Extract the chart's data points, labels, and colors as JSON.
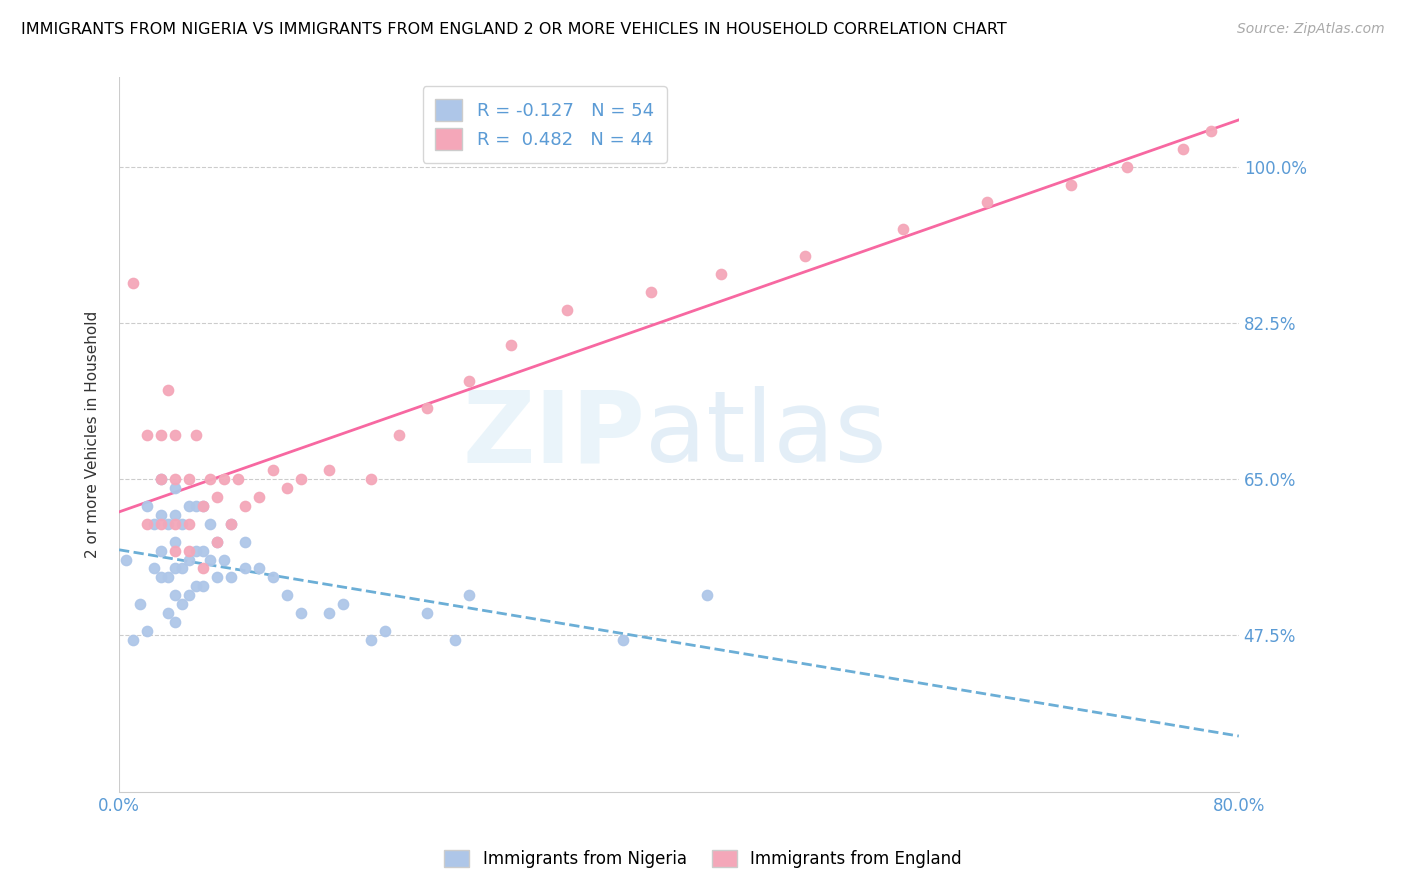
{
  "title": "IMMIGRANTS FROM NIGERIA VS IMMIGRANTS FROM ENGLAND 2 OR MORE VEHICLES IN HOUSEHOLD CORRELATION CHART",
  "source": "Source: ZipAtlas.com",
  "ylabel": "2 or more Vehicles in Household",
  "xlim": [
    0.0,
    0.8
  ],
  "ylim": [
    0.3,
    1.1
  ],
  "yticks": [
    0.475,
    0.65,
    0.825,
    1.0
  ],
  "ytick_labels": [
    "47.5%",
    "65.0%",
    "82.5%",
    "100.0%"
  ],
  "xticks": [
    0.0,
    0.8
  ],
  "xtick_labels": [
    "0.0%",
    "80.0%"
  ],
  "nigeria_R": -0.127,
  "nigeria_N": 54,
  "england_R": 0.482,
  "england_N": 44,
  "legend_labels": [
    "Immigrants from Nigeria",
    "Immigrants from England"
  ],
  "nigeria_color": "#aec6e8",
  "england_color": "#f4a7b9",
  "nigeria_line_color": "#6baed6",
  "england_line_color": "#f768a1",
  "nigeria_scatter_x": [
    0.005,
    0.01,
    0.015,
    0.02,
    0.02,
    0.025,
    0.025,
    0.03,
    0.03,
    0.03,
    0.03,
    0.035,
    0.035,
    0.035,
    0.04,
    0.04,
    0.04,
    0.04,
    0.04,
    0.04,
    0.045,
    0.045,
    0.045,
    0.05,
    0.05,
    0.05,
    0.055,
    0.055,
    0.055,
    0.06,
    0.06,
    0.06,
    0.065,
    0.065,
    0.07,
    0.07,
    0.075,
    0.08,
    0.08,
    0.09,
    0.09,
    0.1,
    0.11,
    0.12,
    0.13,
    0.15,
    0.16,
    0.18,
    0.19,
    0.22,
    0.24,
    0.25,
    0.36,
    0.42
  ],
  "nigeria_scatter_y": [
    0.56,
    0.47,
    0.51,
    0.48,
    0.62,
    0.55,
    0.6,
    0.54,
    0.57,
    0.61,
    0.65,
    0.5,
    0.54,
    0.6,
    0.49,
    0.52,
    0.55,
    0.58,
    0.61,
    0.64,
    0.51,
    0.55,
    0.6,
    0.52,
    0.56,
    0.62,
    0.53,
    0.57,
    0.62,
    0.53,
    0.57,
    0.62,
    0.56,
    0.6,
    0.54,
    0.58,
    0.56,
    0.54,
    0.6,
    0.55,
    0.58,
    0.55,
    0.54,
    0.52,
    0.5,
    0.5,
    0.51,
    0.47,
    0.48,
    0.5,
    0.47,
    0.52,
    0.47,
    0.52
  ],
  "england_scatter_x": [
    0.01,
    0.02,
    0.02,
    0.03,
    0.03,
    0.03,
    0.035,
    0.04,
    0.04,
    0.04,
    0.04,
    0.05,
    0.05,
    0.05,
    0.055,
    0.06,
    0.06,
    0.065,
    0.07,
    0.07,
    0.075,
    0.08,
    0.085,
    0.09,
    0.1,
    0.11,
    0.12,
    0.13,
    0.15,
    0.18,
    0.2,
    0.22,
    0.25,
    0.28,
    0.32,
    0.38,
    0.43,
    0.49,
    0.56,
    0.62,
    0.68,
    0.72,
    0.76,
    0.78
  ],
  "england_scatter_y": [
    0.87,
    0.6,
    0.7,
    0.6,
    0.65,
    0.7,
    0.75,
    0.57,
    0.6,
    0.65,
    0.7,
    0.57,
    0.6,
    0.65,
    0.7,
    0.55,
    0.62,
    0.65,
    0.58,
    0.63,
    0.65,
    0.6,
    0.65,
    0.62,
    0.63,
    0.66,
    0.64,
    0.65,
    0.66,
    0.65,
    0.7,
    0.73,
    0.76,
    0.8,
    0.84,
    0.86,
    0.88,
    0.9,
    0.93,
    0.96,
    0.98,
    1.0,
    1.02,
    1.04
  ]
}
